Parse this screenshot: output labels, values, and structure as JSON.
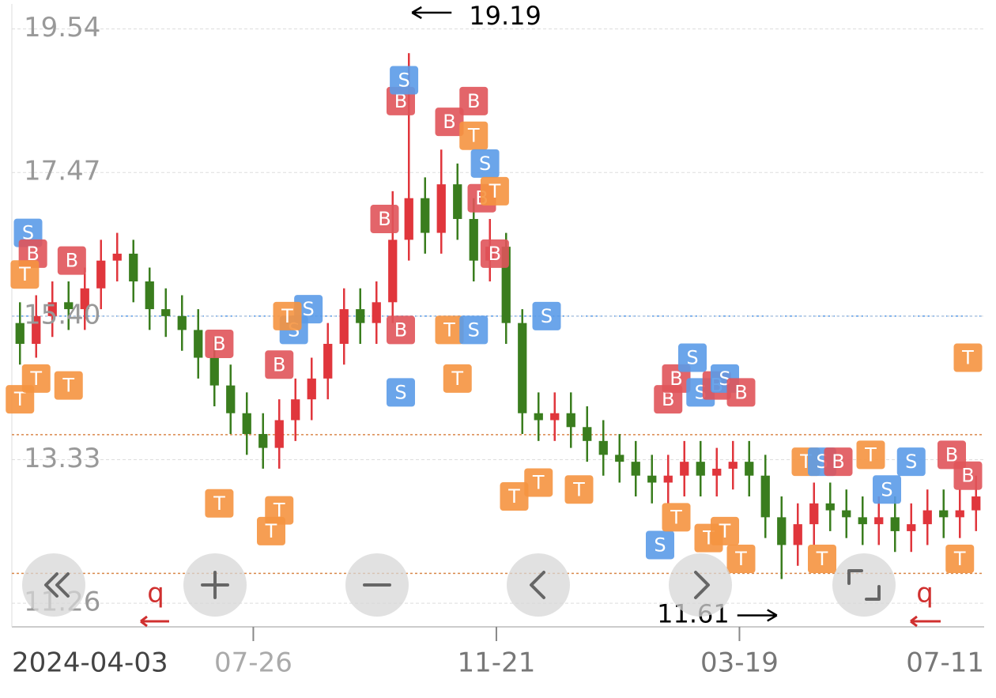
{
  "chart_data": {
    "type": "candlestick",
    "ylim": [
      10.92,
      19.9
    ],
    "yticks": [
      19.54,
      17.47,
      {
        "value": 15.4,
        "label": "15.40"
      },
      13.33,
      11.26
    ],
    "xlim": [
      0,
      60
    ],
    "xticks": [
      {
        "value": 0,
        "label": "2024-04-03"
      },
      {
        "value": 14.9,
        "label": "07-26"
      },
      {
        "value": 29.9,
        "label": "11-21"
      },
      {
        "value": 44.9,
        "label": "03-19"
      },
      {
        "value": 60,
        "label": "07-11"
      }
    ],
    "grid": true,
    "up_color": "#e0363c",
    "down_color": "#3a7d1e",
    "x": [
      0.5,
      1.5,
      2.5,
      3.5,
      4.5,
      5.5,
      6.5,
      7.5,
      8.5,
      9.5,
      10.5,
      11.5,
      12.5,
      13.5,
      14.5,
      15.5,
      16.5,
      17.5,
      18.5,
      19.5,
      20.5,
      21.5,
      22.5,
      23.5,
      24.5,
      25.5,
      26.5,
      27.5,
      28.5,
      29.5,
      30.5,
      31.5,
      32.5,
      33.5,
      34.5,
      35.5,
      36.5,
      37.5,
      38.5,
      39.5,
      40.5,
      41.5,
      42.5,
      43.5,
      44.5,
      45.5,
      46.5,
      47.5,
      48.5,
      49.5,
      50.5,
      51.5,
      52.5,
      53.5,
      54.5,
      55.5,
      56.5,
      57.5,
      58.5,
      59.5
    ],
    "open": [
      15.3,
      15.0,
      15.4,
      15.6,
      15.5,
      15.8,
      16.2,
      16.3,
      15.9,
      15.5,
      15.4,
      15.2,
      14.8,
      14.4,
      14.0,
      13.7,
      13.5,
      13.9,
      14.2,
      14.5,
      15.0,
      15.5,
      15.3,
      15.6,
      16.5,
      17.1,
      16.6,
      17.3,
      16.8,
      16.2,
      16.4,
      15.3,
      14.0,
      13.9,
      14.0,
      13.8,
      13.6,
      13.4,
      13.3,
      13.1,
      13.0,
      13.1,
      13.3,
      13.1,
      13.2,
      13.3,
      13.1,
      12.5,
      12.1,
      12.4,
      12.7,
      12.6,
      12.5,
      12.4,
      12.5,
      12.3,
      12.4,
      12.6,
      12.5,
      12.6
    ],
    "high": [
      15.6,
      15.7,
      15.9,
      15.9,
      16.1,
      16.5,
      16.6,
      16.5,
      16.1,
      15.8,
      15.7,
      15.5,
      15.1,
      14.7,
      14.3,
      14.0,
      14.2,
      14.5,
      14.8,
      15.3,
      15.8,
      15.8,
      15.9,
      17.2,
      19.19,
      17.4,
      17.8,
      17.6,
      17.1,
      16.8,
      16.6,
      15.5,
      14.3,
      14.3,
      14.3,
      14.1,
      13.9,
      13.7,
      13.6,
      13.4,
      13.4,
      13.6,
      13.6,
      13.5,
      13.6,
      13.6,
      13.4,
      12.8,
      12.7,
      13.0,
      13.0,
      12.9,
      12.8,
      12.8,
      12.8,
      12.7,
      12.9,
      12.9,
      12.9,
      13.1
    ],
    "low": [
      14.7,
      14.8,
      15.1,
      15.2,
      15.2,
      15.5,
      15.9,
      15.6,
      15.2,
      15.1,
      14.9,
      14.5,
      14.1,
      13.7,
      13.4,
      13.2,
      13.2,
      13.6,
      13.9,
      14.2,
      14.7,
      15.0,
      15.0,
      15.3,
      16.2,
      16.3,
      16.3,
      16.5,
      15.9,
      15.9,
      15.0,
      13.7,
      13.6,
      13.6,
      13.5,
      13.3,
      13.1,
      13.0,
      12.8,
      12.7,
      12.7,
      12.8,
      12.8,
      12.8,
      12.9,
      12.8,
      12.2,
      11.61,
      11.8,
      12.1,
      12.3,
      12.2,
      12.1,
      12.1,
      12.0,
      12.0,
      12.1,
      12.2,
      12.2,
      12.3
    ],
    "close": [
      15.0,
      15.4,
      15.6,
      15.5,
      15.8,
      16.2,
      16.3,
      15.9,
      15.5,
      15.4,
      15.2,
      14.8,
      14.4,
      14.0,
      13.7,
      13.5,
      13.9,
      14.2,
      14.5,
      15.0,
      15.5,
      15.3,
      15.6,
      16.5,
      17.1,
      16.6,
      17.3,
      16.8,
      16.2,
      16.4,
      15.3,
      14.0,
      13.9,
      14.0,
      13.8,
      13.6,
      13.4,
      13.3,
      13.1,
      13.0,
      13.1,
      13.3,
      13.1,
      13.2,
      13.3,
      13.1,
      12.5,
      12.1,
      12.4,
      12.7,
      12.6,
      12.5,
      12.4,
      12.5,
      12.3,
      12.4,
      12.6,
      12.5,
      12.6,
      12.8
    ],
    "ref_lines": [
      {
        "value": 15.4,
        "color": "#5b9be8"
      },
      {
        "value": 13.69,
        "color": "#d9884a"
      },
      {
        "value": 11.69,
        "color": "#d9884a"
      }
    ],
    "marker_colors": {
      "B": "#e0545a",
      "S": "#5b9be8",
      "T": "#f59340"
    },
    "markers": [
      {
        "label": "S",
        "x": 1.0,
        "y": 16.6
      },
      {
        "label": "B",
        "x": 1.3,
        "y": 16.3
      },
      {
        "label": "T",
        "x": 0.8,
        "y": 16.0
      },
      {
        "label": "B",
        "x": 3.7,
        "y": 16.2
      },
      {
        "label": "T",
        "x": 0.5,
        "y": 14.2
      },
      {
        "label": "T",
        "x": 1.5,
        "y": 14.5
      },
      {
        "label": "T",
        "x": 3.5,
        "y": 14.4
      },
      {
        "label": "B",
        "x": 12.8,
        "y": 15.0
      },
      {
        "label": "T",
        "x": 12.8,
        "y": 12.7
      },
      {
        "label": "B",
        "x": 16.5,
        "y": 14.7
      },
      {
        "label": "T",
        "x": 16.5,
        "y": 12.6
      },
      {
        "label": "T",
        "x": 16.0,
        "y": 12.3
      },
      {
        "label": "S",
        "x": 17.4,
        "y": 15.2
      },
      {
        "label": "S",
        "x": 18.3,
        "y": 15.5
      },
      {
        "label": "T",
        "x": 17.0,
        "y": 15.4
      },
      {
        "label": "B",
        "x": 23.0,
        "y": 16.8
      },
      {
        "label": "B",
        "x": 24.0,
        "y": 15.2
      },
      {
        "label": "S",
        "x": 24.0,
        "y": 14.3
      },
      {
        "label": "B",
        "x": 24.0,
        "y": 18.5
      },
      {
        "label": "S",
        "x": 24.2,
        "y": 18.8
      },
      {
        "label": "B",
        "x": 27.0,
        "y": 18.2
      },
      {
        "label": "B",
        "x": 28.5,
        "y": 18.5
      },
      {
        "label": "T",
        "x": 28.5,
        "y": 18.0
      },
      {
        "label": "B",
        "x": 29.0,
        "y": 17.1
      },
      {
        "label": "S",
        "x": 29.2,
        "y": 17.6
      },
      {
        "label": "T",
        "x": 29.8,
        "y": 17.2
      },
      {
        "label": "B",
        "x": 29.8,
        "y": 16.3
      },
      {
        "label": "S",
        "x": 33.0,
        "y": 15.4
      },
      {
        "label": "T",
        "x": 27.0,
        "y": 15.2
      },
      {
        "label": "S",
        "x": 28.5,
        "y": 15.2
      },
      {
        "label": "T",
        "x": 27.5,
        "y": 14.5
      },
      {
        "label": "T",
        "x": 31.0,
        "y": 12.8
      },
      {
        "label": "T",
        "x": 32.5,
        "y": 13.0
      },
      {
        "label": "T",
        "x": 35.0,
        "y": 12.9
      },
      {
        "label": "B",
        "x": 40.5,
        "y": 14.2
      },
      {
        "label": "B",
        "x": 41.0,
        "y": 14.5
      },
      {
        "label": "S",
        "x": 42.0,
        "y": 14.8
      },
      {
        "label": "S",
        "x": 42.5,
        "y": 14.3
      },
      {
        "label": "B",
        "x": 43.5,
        "y": 14.4
      },
      {
        "label": "S",
        "x": 44.0,
        "y": 14.5
      },
      {
        "label": "B",
        "x": 45.0,
        "y": 14.3
      },
      {
        "label": "S",
        "x": 40.0,
        "y": 12.1
      },
      {
        "label": "T",
        "x": 41.0,
        "y": 12.5
      },
      {
        "label": "T",
        "x": 43.0,
        "y": 12.2
      },
      {
        "label": "T",
        "x": 44.0,
        "y": 12.3
      },
      {
        "label": "T",
        "x": 45.0,
        "y": 11.9
      },
      {
        "label": "T",
        "x": 49.0,
        "y": 13.3
      },
      {
        "label": "S",
        "x": 50.0,
        "y": 13.3
      },
      {
        "label": "B",
        "x": 51.0,
        "y": 13.3
      },
      {
        "label": "T",
        "x": 53.0,
        "y": 13.4
      },
      {
        "label": "S",
        "x": 54.0,
        "y": 12.9
      },
      {
        "label": "S",
        "x": 55.5,
        "y": 13.3
      },
      {
        "label": "B",
        "x": 58.0,
        "y": 13.4
      },
      {
        "label": "B",
        "x": 59.0,
        "y": 13.1
      },
      {
        "label": "T",
        "x": 59.0,
        "y": 14.8
      },
      {
        "label": "T",
        "x": 58.5,
        "y": 11.9
      },
      {
        "label": "T",
        "x": 50.0,
        "y": 11.9
      }
    ],
    "max_annotation": {
      "value": 19.19,
      "x": 24.5
    },
    "min_annotation": {
      "value": 11.61,
      "x": 47.5
    },
    "nav_label": "q"
  }
}
